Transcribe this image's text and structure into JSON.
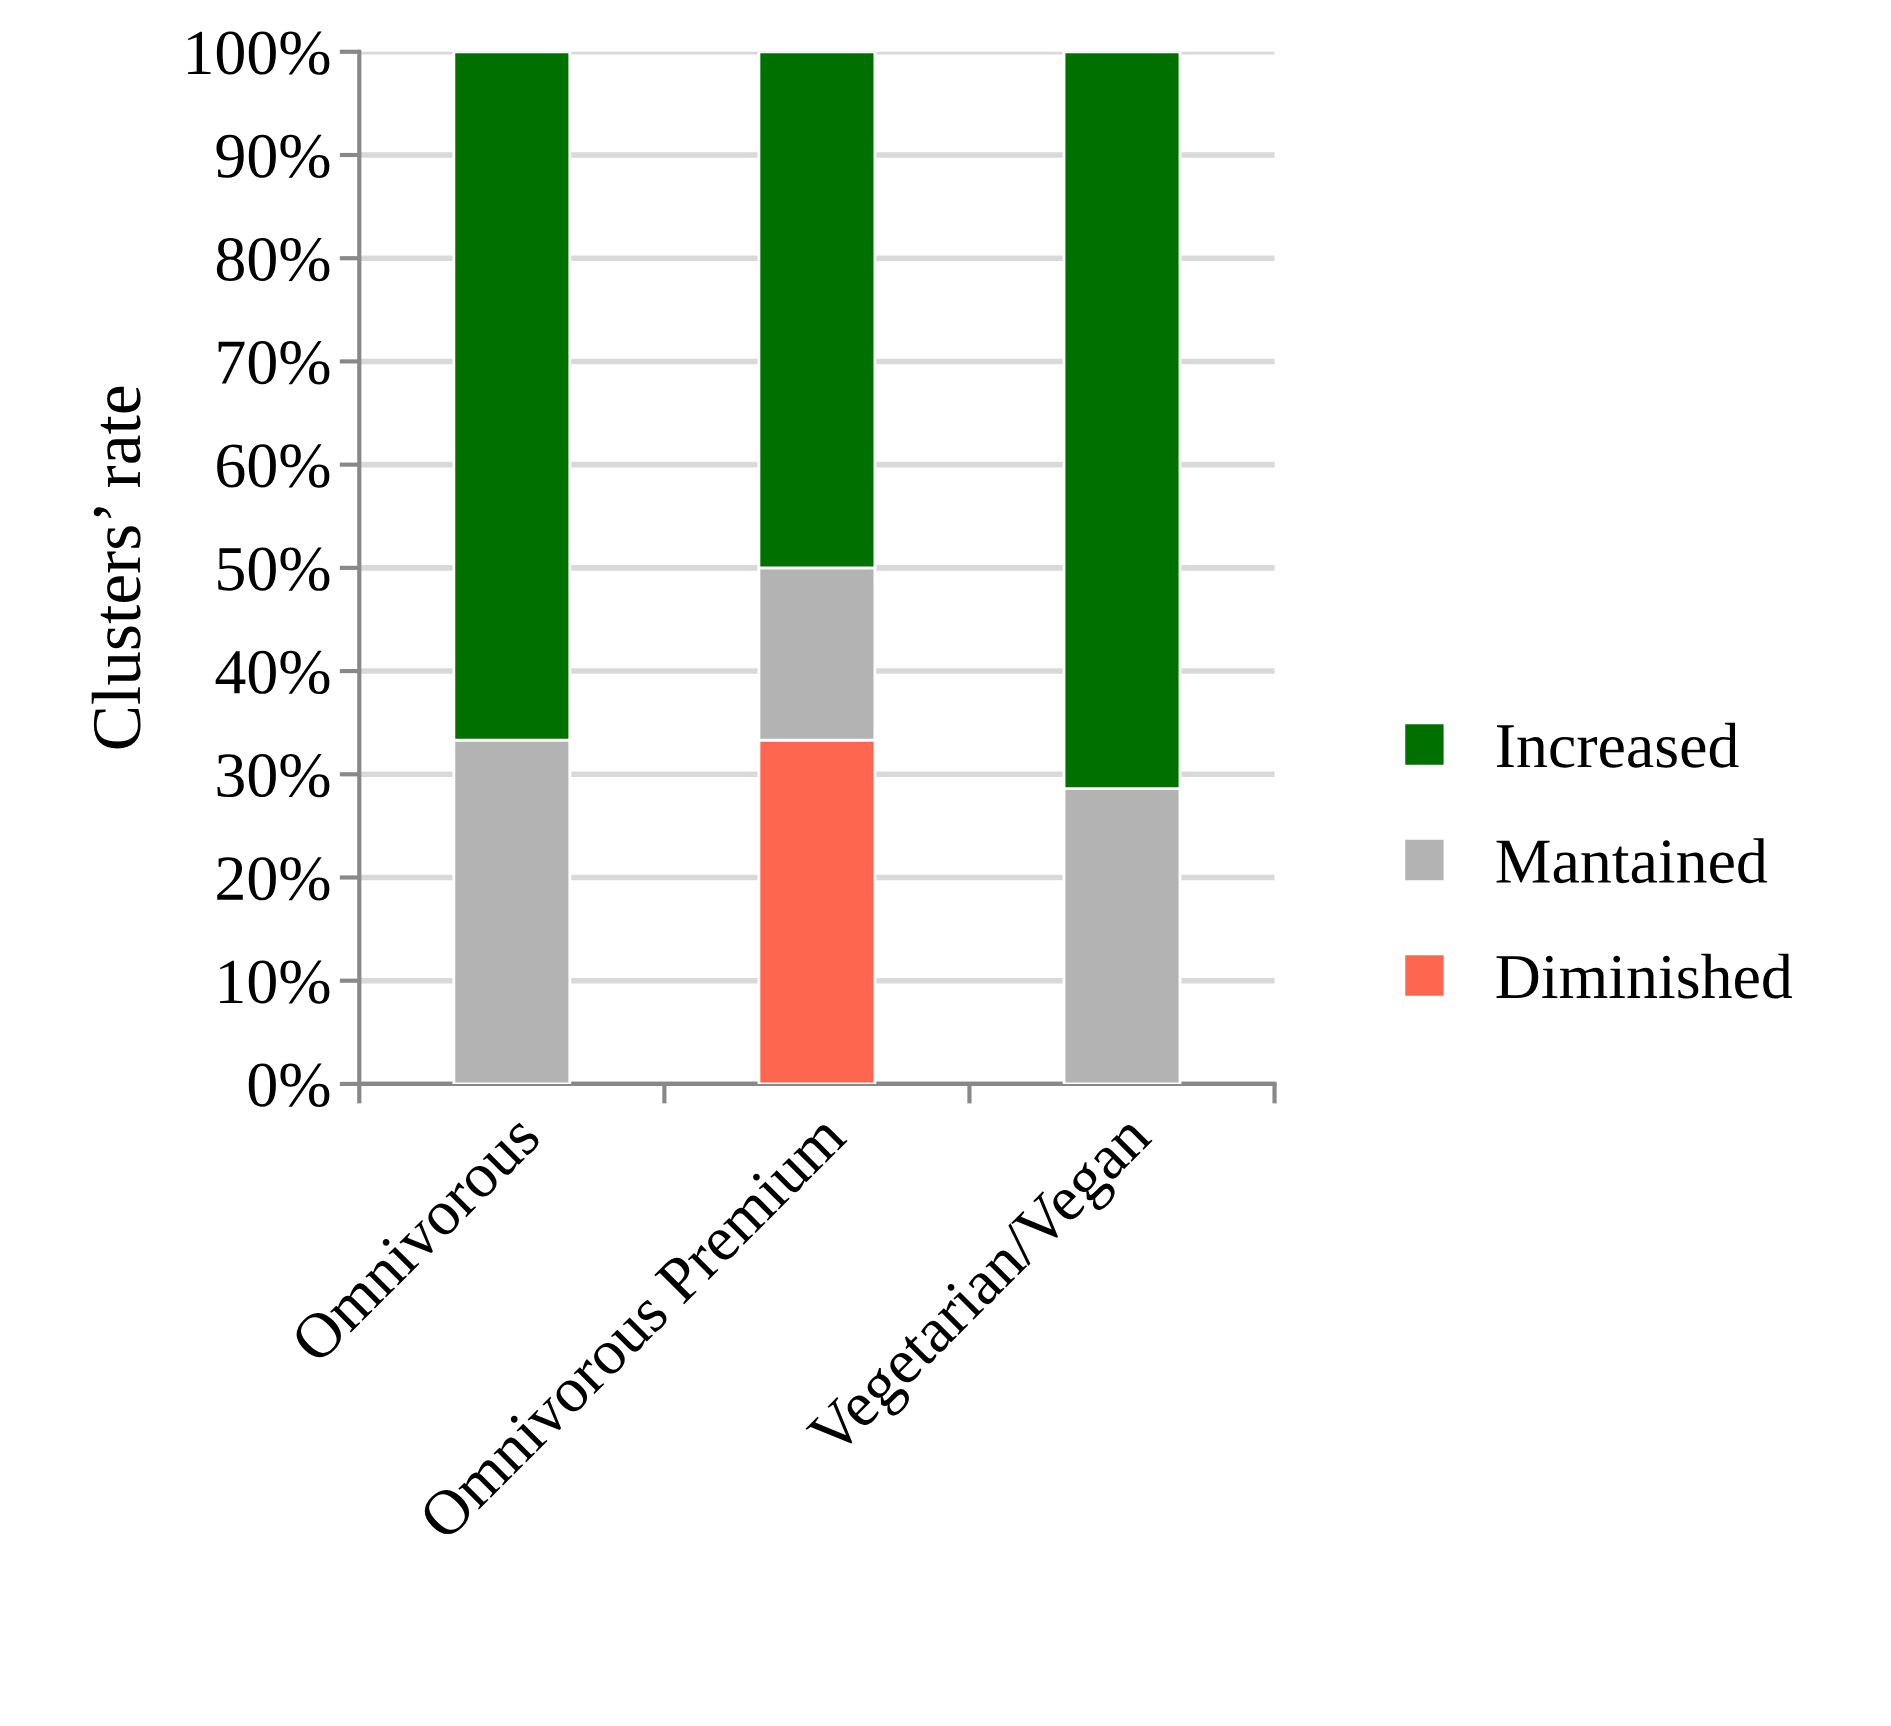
{
  "chart_data": {
    "type": "bar",
    "stacked": true,
    "ylabel": "Clusters’ rate",
    "categories": [
      "Omnivorous",
      "Omnivorous Premium",
      "Vegetarian/Vegan"
    ],
    "series": [
      {
        "name": "Diminished",
        "color": "#ff6650",
        "values": [
          0,
          33.3,
          0
        ]
      },
      {
        "name": "Mantained",
        "color": "#b3b3b3",
        "values": [
          33.3,
          16.7,
          28.6
        ]
      },
      {
        "name": "Increased",
        "color": "#007000",
        "values": [
          66.7,
          50,
          71.4
        ]
      }
    ],
    "ylim": [
      0,
      100
    ],
    "yticks": [
      {
        "value": 0,
        "label": "0%"
      },
      {
        "value": 10,
        "label": "10%"
      },
      {
        "value": 20,
        "label": "20%"
      },
      {
        "value": 30,
        "label": "30%"
      },
      {
        "value": 40,
        "label": "40%"
      },
      {
        "value": 50,
        "label": "50%"
      },
      {
        "value": 60,
        "label": "60%"
      },
      {
        "value": 70,
        "label": "70%"
      },
      {
        "value": 80,
        "label": "80%"
      },
      {
        "value": 90,
        "label": "90%"
      },
      {
        "value": 100,
        "label": "100%"
      }
    ],
    "grid": "y",
    "legend": "right"
  }
}
